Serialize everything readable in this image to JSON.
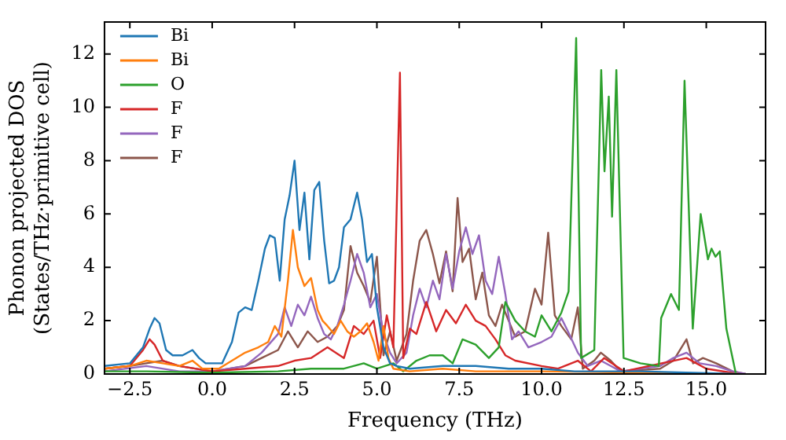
{
  "chart_data": {
    "type": "line",
    "xlabel": "Frequency (THz)",
    "ylabel": "Phonon projected DOS\n(States/THz·primitive cell)",
    "xlim": [
      -3.27,
      16.8
    ],
    "ylim": [
      0,
      13.2
    ],
    "xticks": [
      {
        "value": -2.5,
        "label": "−2.5"
      },
      {
        "value": 0,
        "label": "0.0"
      },
      {
        "value": 2.5,
        "label": "2.5"
      },
      {
        "value": 5,
        "label": "5.0"
      },
      {
        "value": 7.5,
        "label": "7.5"
      },
      {
        "value": 10,
        "label": "10.0"
      },
      {
        "value": 12.5,
        "label": "12.5"
      },
      {
        "value": 15,
        "label": "15.0"
      }
    ],
    "yticks": [
      0,
      2,
      4,
      6,
      8,
      10,
      12
    ],
    "grid": false,
    "legend": "top left",
    "marker": "none",
    "line_style": "solid",
    "series": [
      {
        "name": "Bi",
        "color": "#1f77b4",
        "x": [
          -3.27,
          -2.5,
          -2.1,
          -1.9,
          -1.75,
          -1.6,
          -1.4,
          -1.2,
          -0.9,
          -0.6,
          -0.4,
          -0.2,
          0.3,
          0.6,
          0.8,
          1.0,
          1.2,
          1.4,
          1.6,
          1.75,
          1.9,
          2.05,
          2.2,
          2.35,
          2.5,
          2.65,
          2.8,
          2.95,
          3.1,
          3.25,
          3.4,
          3.55,
          3.7,
          3.85,
          4.0,
          4.2,
          4.4,
          4.55,
          4.7,
          4.85,
          5.0,
          5.2,
          5.4,
          5.6,
          6.0,
          7.0,
          8.0,
          9.0,
          10.0,
          11.0,
          13.0,
          16.0
        ],
        "values": [
          0.3,
          0.4,
          1.0,
          1.7,
          2.1,
          1.9,
          0.9,
          0.7,
          0.7,
          0.9,
          0.6,
          0.4,
          0.4,
          1.2,
          2.3,
          2.5,
          2.4,
          3.5,
          4.7,
          5.2,
          5.1,
          3.5,
          5.8,
          6.7,
          8.0,
          5.4,
          6.8,
          4.3,
          6.9,
          7.2,
          5.0,
          3.4,
          3.5,
          4.0,
          5.5,
          5.8,
          6.8,
          5.8,
          4.2,
          4.5,
          2.5,
          1.0,
          0.4,
          0.3,
          0.2,
          0.3,
          0.3,
          0.2,
          0.2,
          0.1,
          0.1,
          0
        ]
      },
      {
        "name": "Bi",
        "color": "#ff7f0e",
        "x": [
          -3.27,
          -2.5,
          -2.0,
          -1.5,
          -1.0,
          -0.6,
          -0.3,
          0.2,
          0.6,
          1.0,
          1.4,
          1.7,
          1.9,
          2.1,
          2.3,
          2.45,
          2.6,
          2.8,
          3.0,
          3.2,
          3.35,
          3.5,
          3.7,
          3.9,
          4.1,
          4.3,
          4.5,
          4.7,
          4.9,
          5.05,
          5.2,
          5.35,
          5.5,
          6.0,
          7.0,
          8.0,
          10.0,
          16.0
        ],
        "values": [
          0.2,
          0.3,
          0.5,
          0.4,
          0.3,
          0.5,
          0.2,
          0.2,
          0.5,
          0.8,
          1.0,
          1.2,
          1.8,
          1.4,
          3.5,
          5.4,
          4.0,
          3.3,
          3.6,
          2.4,
          2.0,
          1.8,
          1.5,
          2.0,
          1.6,
          1.4,
          1.6,
          1.9,
          1.2,
          0.5,
          1.8,
          0.6,
          0.2,
          0.1,
          0.2,
          0.1,
          0.1,
          0
        ]
      },
      {
        "name": "O",
        "color": "#2ca02c",
        "x": [
          -3.27,
          -2.0,
          0,
          2.0,
          3.0,
          4.0,
          4.6,
          5.0,
          5.5,
          5.8,
          6.2,
          6.6,
          7.0,
          7.3,
          7.6,
          8.0,
          8.4,
          8.7,
          8.9,
          9.2,
          9.5,
          9.8,
          10.0,
          10.3,
          10.6,
          10.82,
          11.05,
          11.2,
          11.6,
          11.81,
          11.91,
          12.04,
          12.14,
          12.27,
          12.49,
          13.0,
          13.56,
          13.63,
          13.93,
          14.17,
          14.34,
          14.59,
          14.83,
          15.05,
          15.16,
          15.28,
          15.41,
          15.61,
          15.9
        ],
        "values": [
          0.1,
          0.1,
          0.05,
          0.1,
          0.2,
          0.2,
          0.4,
          0.2,
          0.4,
          0.1,
          0.5,
          0.7,
          0.7,
          0.4,
          1.3,
          1.1,
          0.6,
          1.0,
          2.7,
          2.0,
          1.6,
          1.4,
          2.2,
          1.6,
          2.3,
          3.1,
          12.6,
          0.6,
          0.9,
          11.4,
          7.6,
          10.4,
          5.9,
          11.4,
          0.6,
          0.4,
          0.3,
          2.1,
          3.0,
          2.4,
          11.0,
          1.7,
          6.0,
          4.3,
          4.7,
          4.4,
          4.6,
          1.7,
          0
        ]
      },
      {
        "name": "F",
        "color": "#d62728",
        "x": [
          -3.27,
          -2.5,
          -2.1,
          -1.9,
          -1.75,
          -1.5,
          -1.0,
          0,
          1.0,
          2.0,
          2.5,
          3.0,
          3.5,
          4.0,
          4.3,
          4.6,
          4.9,
          5.1,
          5.3,
          5.5,
          5.7,
          5.8,
          6.0,
          6.2,
          6.5,
          6.8,
          7.1,
          7.4,
          7.7,
          8.0,
          8.3,
          8.6,
          8.9,
          9.2,
          10.0,
          10.5,
          11.1,
          11.5,
          11.9,
          12.5,
          14.4,
          15.0,
          16.0
        ],
        "values": [
          0.2,
          0.3,
          0.9,
          1.3,
          1.1,
          0.5,
          0.3,
          0.1,
          0.2,
          0.3,
          0.5,
          0.6,
          1.0,
          0.6,
          1.8,
          1.5,
          2.0,
          0.6,
          2.2,
          1.0,
          11.3,
          0.6,
          1.7,
          1.5,
          2.7,
          1.6,
          2.4,
          1.9,
          2.6,
          2.0,
          1.8,
          1.3,
          0.7,
          0.5,
          0.3,
          0.2,
          0.5,
          0.1,
          0.6,
          0.1,
          0.6,
          0.2,
          0
        ]
      },
      {
        "name": "F",
        "color": "#9467bd",
        "x": [
          -3.27,
          -2.0,
          -1.0,
          0,
          1.0,
          1.5,
          2.0,
          2.2,
          2.4,
          2.6,
          2.8,
          3.0,
          3.2,
          3.4,
          3.6,
          3.8,
          4.0,
          4.2,
          4.4,
          4.6,
          4.8,
          5.0,
          5.2,
          5.4,
          5.6,
          5.9,
          6.1,
          6.3,
          6.5,
          6.7,
          6.9,
          7.1,
          7.3,
          7.5,
          7.7,
          7.9,
          8.1,
          8.3,
          8.5,
          8.7,
          8.9,
          9.1,
          9.3,
          9.6,
          10.0,
          10.3,
          10.6,
          10.8,
          11.1,
          11.4,
          11.8,
          12.1,
          12.4,
          13.6,
          14.0,
          14.4,
          14.8,
          15.3,
          15.8,
          16.2
        ],
        "values": [
          0.1,
          0.3,
          0.1,
          0.1,
          0.3,
          0.8,
          1.5,
          2.5,
          1.8,
          2.6,
          2.2,
          2.9,
          2.1,
          1.5,
          1.3,
          1.8,
          2.6,
          3.5,
          4.5,
          3.8,
          2.5,
          3.0,
          1.5,
          0.8,
          0.4,
          0.8,
          2.2,
          3.2,
          2.5,
          3.5,
          2.8,
          4.5,
          3.2,
          4.6,
          5.5,
          4.5,
          5.2,
          3.5,
          3.0,
          4.4,
          3.0,
          1.3,
          1.6,
          1.0,
          1.2,
          1.4,
          2.1,
          1.6,
          0.8,
          0.3,
          0.5,
          0.3,
          0.1,
          0.3,
          0.6,
          0.8,
          0.4,
          0.3,
          0.1,
          0
        ]
      },
      {
        "name": "F",
        "color": "#8c564b",
        "x": [
          -3.27,
          -2.5,
          -2.0,
          -1.5,
          -1.0,
          0,
          1.0,
          1.5,
          2.0,
          2.3,
          2.6,
          2.9,
          3.2,
          3.5,
          3.8,
          4.0,
          4.2,
          4.4,
          4.6,
          4.8,
          5.0,
          5.2,
          5.4,
          5.6,
          5.9,
          6.1,
          6.3,
          6.5,
          6.7,
          6.9,
          7.1,
          7.3,
          7.45,
          7.6,
          7.8,
          8.0,
          8.2,
          8.4,
          8.6,
          8.8,
          9.0,
          9.2,
          9.5,
          9.8,
          10.0,
          10.2,
          10.4,
          10.6,
          10.9,
          11.1,
          11.25,
          11.6,
          11.8,
          12.1,
          12.4,
          13.6,
          14.0,
          14.4,
          14.6,
          14.9,
          15.3,
          15.8,
          16.2
        ],
        "values": [
          0.2,
          0.3,
          0.4,
          0.5,
          0.3,
          0.1,
          0.3,
          0.6,
          0.9,
          1.6,
          1.0,
          1.6,
          1.2,
          1.4,
          1.8,
          2.4,
          4.8,
          3.8,
          3.3,
          2.7,
          4.4,
          0.7,
          1.6,
          0.5,
          1.5,
          3.5,
          5.0,
          5.4,
          4.5,
          3.4,
          4.6,
          3.1,
          6.6,
          4.2,
          4.7,
          2.8,
          3.8,
          2.2,
          1.8,
          2.6,
          2.0,
          1.4,
          1.6,
          3.2,
          2.6,
          5.3,
          2.2,
          1.8,
          1.3,
          2.5,
          0.2,
          0.5,
          0.8,
          0.5,
          0.1,
          0.2,
          0.5,
          1.3,
          0.4,
          0.6,
          0.4,
          0.1,
          0
        ]
      }
    ]
  }
}
